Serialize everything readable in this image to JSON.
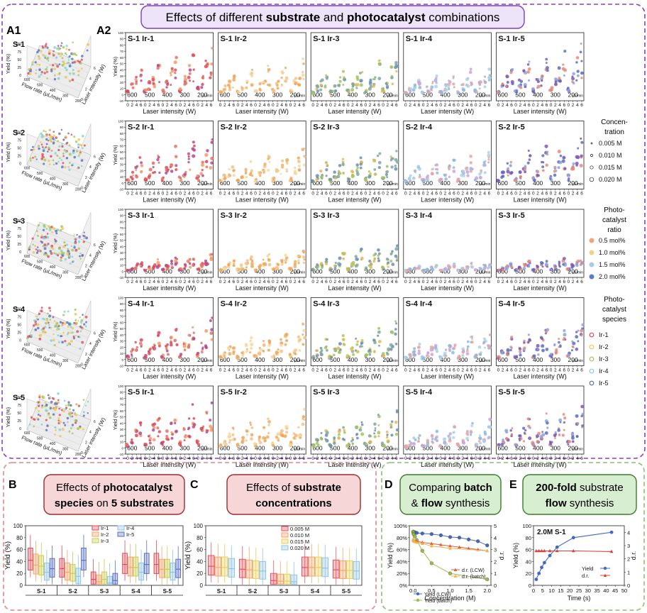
{
  "header": {
    "title_pre": "Effects of different ",
    "title_b1": "substrate",
    "title_mid": " and ",
    "title_b2": "photocatalyst",
    "title_post": " combinations"
  },
  "panels": {
    "A1": "A1",
    "A2": "A2",
    "B": "B",
    "C": "C",
    "D": "D",
    "E": "E"
  },
  "substrates": [
    "S-1",
    "S-2",
    "S-3",
    "S-4",
    "S-5"
  ],
  "catalysts": [
    "Ir-1",
    "Ir-2",
    "Ir-3",
    "Ir-4",
    "Ir-5"
  ],
  "a1_axes": {
    "ylabel": "Yield (%)",
    "xlabel": "Flow rate (µL/min)",
    "zlabel": "Laser intensity (W)",
    "yticks": [
      "0",
      "25",
      "50",
      "75",
      "100"
    ],
    "flow_ticks": [
      "600",
      "500",
      "400",
      "300",
      "200"
    ],
    "laser_ticks": [
      "0",
      "2",
      "4",
      "6"
    ]
  },
  "a2_axes": {
    "ylabel": "Yield (%)",
    "xlabel": "Laser intensity (W)",
    "yticks": [
      "-10",
      "0",
      "10",
      "20",
      "30",
      "40",
      "50",
      "60",
      "70",
      "80",
      "90",
      "100"
    ],
    "xticks": [
      "0",
      "2",
      "4",
      "6"
    ],
    "flow_groups": [
      "600",
      "500",
      "400",
      "300",
      "200"
    ],
    "flow_unit": "µL/min"
  },
  "legend": {
    "conc_title_1": "Concen-",
    "conc_title_2": "tration",
    "conc_items": [
      "0.005 M",
      "0.010 M",
      "0.015 M",
      "0.020 M"
    ],
    "ratio_title_1": "Photo-",
    "ratio_title_2": "catalyst",
    "ratio_title_3": "ratio",
    "ratio_items": [
      "0.5 mol%",
      "1.0 mol%",
      "1.5 mol%",
      "2.0 mol%"
    ],
    "ratio_colors": [
      "#f2a47e",
      "#f5d08a",
      "#a9cbe0",
      "#5b7dc4"
    ],
    "species_title_1": "Photo-",
    "species_title_2": "catalyst",
    "species_title_3": "species",
    "species_items": [
      "Ir-1",
      "Ir-2",
      "Ir-3",
      "Ir-4",
      "Ir-5"
    ],
    "species_colors": [
      "#d94c5c",
      "#f0c65a",
      "#a8c45a",
      "#7fd3cf",
      "#5a6fc0"
    ]
  },
  "box_b": {
    "title_pre": "Effects of ",
    "title_b1": "photocatalyst",
    "title_line2_b": "species",
    "title_line2_mid": " on ",
    "title_line2_b2": "5 substrates",
    "ylabel": "Yield (%)",
    "yticks": [
      "0",
      "20",
      "40",
      "60",
      "80",
      "100"
    ],
    "legend": [
      "Ir-1",
      "Ir-2",
      "Ir-3",
      "Ir-4",
      "Ir-5"
    ]
  },
  "box_c": {
    "title_pre": "Effects of ",
    "title_b1": "substrate",
    "title_line2_b": "concentrations",
    "ylabel": "Yield (%)",
    "yticks": [
      "0",
      "20",
      "40",
      "60",
      "80",
      "100"
    ],
    "legend": [
      "0.005 M",
      "0.010 M",
      "0.015 M",
      "0.020 M"
    ],
    "colors": [
      "#e8505b",
      "#f3a46a",
      "#e7cf5e",
      "#8fc4e4"
    ]
  },
  "box_d": {
    "title_1": "Comparing ",
    "title_b1": "batch",
    "title_2": "& ",
    "title_b2": "flow",
    "title_3": " synthesis",
    "ylabel": "Yield (%)",
    "y2label": "d.r.",
    "xlabel": "Concentration (M)",
    "yticks": [
      "0%",
      "20%",
      "40%",
      "60%",
      "80%",
      "100%"
    ],
    "y2ticks": [
      "0",
      "1",
      "2",
      "3",
      "4",
      "5"
    ],
    "xticks": [
      "0.0",
      "0.5",
      "1.0",
      "1.5",
      "2.0"
    ],
    "legend": [
      "d.r. (LCW)",
      "d.r. (batch)",
      "Yield (LCW)",
      "Yield (batch)"
    ]
  },
  "box_e": {
    "title_b1": "200-fold",
    "title_1": " substrate",
    "title_b2": "flow",
    "title_2": " synthesis",
    "annot": "2.0M S-1",
    "ylabel": "Yield (%)",
    "y2label": "d.r.",
    "xlabel": "Time (s)",
    "yticks": [
      "0",
      "20",
      "40",
      "60",
      "80",
      "100"
    ],
    "y2ticks": [
      "0",
      "1",
      "2",
      "3",
      "4"
    ],
    "xticks": [
      "0",
      "5",
      "10",
      "15",
      "20",
      "25",
      "30",
      "35",
      "40",
      "45",
      "50"
    ],
    "legend": [
      "Yield",
      "d.r."
    ]
  },
  "chart_data": [
    {
      "type": "scatter",
      "panel": "A2",
      "substrates": [
        "S-1",
        "S-2",
        "S-3",
        "S-4",
        "S-5"
      ],
      "catalysts": [
        "Ir-1",
        "Ir-2",
        "Ir-3",
        "Ir-4",
        "Ir-5"
      ],
      "flow_rates": [
        600,
        500,
        400,
        300,
        200
      ],
      "laser_intensity": [
        0,
        2,
        4,
        6
      ],
      "ylim": [
        -10,
        100
      ],
      "approx_max_yield": [
        [
          75,
          60,
          60,
          45,
          80
        ],
        [
          75,
          55,
          60,
          50,
          80
        ],
        [
          30,
          35,
          45,
          15,
          25
        ],
        [
          70,
          55,
          60,
          45,
          65
        ],
        [
          80,
          60,
          60,
          45,
          70
        ]
      ]
    },
    {
      "type": "box",
      "panel": "B",
      "categories": [
        "S-1",
        "S-2",
        "S-3",
        "S-4",
        "S-5"
      ],
      "ylim": [
        0,
        100
      ],
      "series": [
        {
          "name": "Ir-1",
          "medians": [
            42,
            28,
            10,
            35,
            35
          ]
        },
        {
          "name": "Ir-2",
          "medians": [
            34,
            22,
            6,
            30,
            27
          ]
        },
        {
          "name": "Ir-3",
          "medians": [
            32,
            20,
            10,
            30,
            27
          ]
        },
        {
          "name": "Ir-4",
          "medians": [
            22,
            15,
            4,
            22,
            22
          ]
        },
        {
          "name": "Ir-5",
          "medians": [
            28,
            42,
            8,
            35,
            27
          ]
        }
      ]
    },
    {
      "type": "box",
      "panel": "C",
      "categories": [
        "S-1",
        "S-2",
        "S-3",
        "S-4",
        "S-5"
      ],
      "ylim": [
        0,
        100
      ],
      "series": [
        {
          "name": "0.005 M",
          "medians": [
            32,
            27,
            8,
            30,
            26
          ]
        },
        {
          "name": "0.010 M",
          "medians": [
            30,
            26,
            7,
            30,
            25
          ]
        },
        {
          "name": "0.015 M",
          "medians": [
            30,
            25,
            7,
            30,
            25
          ]
        },
        {
          "name": "0.020 M",
          "medians": [
            28,
            24,
            6,
            29,
            24
          ]
        }
      ]
    },
    {
      "type": "line",
      "panel": "D",
      "xlim": [
        -0.1,
        2.1
      ],
      "ylim": [
        0,
        100
      ],
      "y2lim": [
        0,
        5
      ],
      "series": [
        {
          "name": "Yield (LCW)",
          "x": [
            0.005,
            0.01,
            0.015,
            0.02,
            0.05,
            0.1,
            0.25,
            0.5,
            0.75,
            1.0,
            1.25,
            1.5,
            1.75,
            2.0
          ],
          "y": [
            90,
            90,
            89,
            88,
            89,
            88,
            87,
            86,
            84,
            81,
            80,
            77,
            74,
            67
          ]
        },
        {
          "name": "Yield (batch)",
          "x": [
            0.005,
            0.01,
            0.015,
            0.02,
            0.05,
            0.1,
            0.25,
            0.5,
            1.0,
            2.0
          ],
          "y": [
            90,
            88,
            86,
            85,
            82,
            76,
            58,
            37,
            20,
            10
          ]
        },
        {
          "name": "d.r. (LCW)",
          "axis": "y2",
          "x": [
            0.005,
            0.01,
            0.015,
            0.02,
            0.05,
            0.1,
            0.25,
            0.5,
            0.75,
            1.0,
            1.25,
            1.5,
            1.75,
            2.0
          ],
          "y": [
            3.8,
            3.8,
            3.75,
            3.75,
            3.7,
            3.7,
            3.6,
            3.5,
            3.4,
            3.3,
            3.2,
            3.1,
            3.0,
            2.9
          ]
        },
        {
          "name": "d.r. (batch)",
          "axis": "y2",
          "x": [
            0.005,
            0.01,
            0.015,
            0.02,
            0.05,
            0.1,
            0.25,
            0.5,
            1.0,
            2.0
          ],
          "y": [
            3.9,
            3.8,
            3.75,
            3.7,
            3.65,
            3.6,
            3.5,
            3.3,
            3.1,
            2.9
          ]
        }
      ]
    },
    {
      "type": "line",
      "panel": "E",
      "xlim": [
        0,
        50
      ],
      "ylim": [
        0,
        100
      ],
      "y2lim": [
        0,
        4.5
      ],
      "series": [
        {
          "name": "Yield",
          "x": [
            1.5,
            3,
            4.5,
            6,
            9,
            13,
            22,
            43
          ],
          "y": [
            10,
            20,
            30,
            38,
            50,
            64,
            80,
            89
          ]
        },
        {
          "name": "d.r.",
          "axis": "y2",
          "x": [
            1.5,
            3,
            4.5,
            6,
            9,
            13,
            22,
            43
          ],
          "y": [
            2.6,
            2.6,
            2.6,
            2.6,
            2.6,
            2.6,
            2.6,
            2.55
          ]
        }
      ]
    }
  ]
}
